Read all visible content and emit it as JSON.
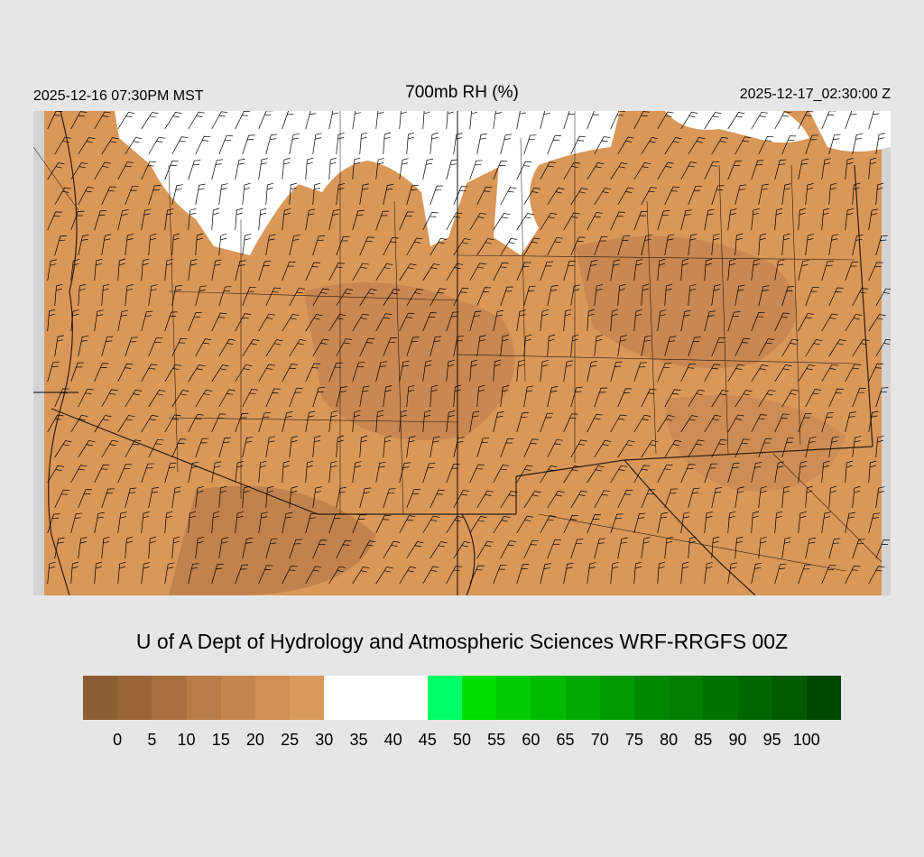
{
  "header": {
    "local_time": "2025-12-16 07:30PM MST",
    "title": "700mb RH (%)",
    "valid_time": "2025-12-17_02:30:00 Z"
  },
  "footer": {
    "credit": "U of A Dept of Hydrology and Atmospheric Sciences WRF-RRGFS 00Z"
  },
  "map": {
    "field": "700mb relative humidity",
    "overlay": "wind barbs",
    "dominant_fill_color": "#d99758",
    "white_region_color": "#ffffff",
    "missing_data_color": "#d3d3d3",
    "boundary_color": "#000000"
  },
  "legend": {
    "colors": [
      "#8b5e34",
      "#9a6538",
      "#a8703f",
      "#b77c47",
      "#c5864d",
      "#d18f53",
      "#da9a5c",
      "#ffffff",
      "#ffffff",
      "#ffffff",
      "#00ff66",
      "#00dd00",
      "#00cc00",
      "#00bb00",
      "#00aa00",
      "#009900",
      "#008800",
      "#007f00",
      "#007300",
      "#006600",
      "#005a00",
      "#004700"
    ],
    "ticks": [
      "0",
      "5",
      "10",
      "15",
      "20",
      "25",
      "30",
      "35",
      "40",
      "45",
      "50",
      "55",
      "60",
      "65",
      "70",
      "75",
      "80",
      "85",
      "90",
      "95",
      "100"
    ]
  }
}
